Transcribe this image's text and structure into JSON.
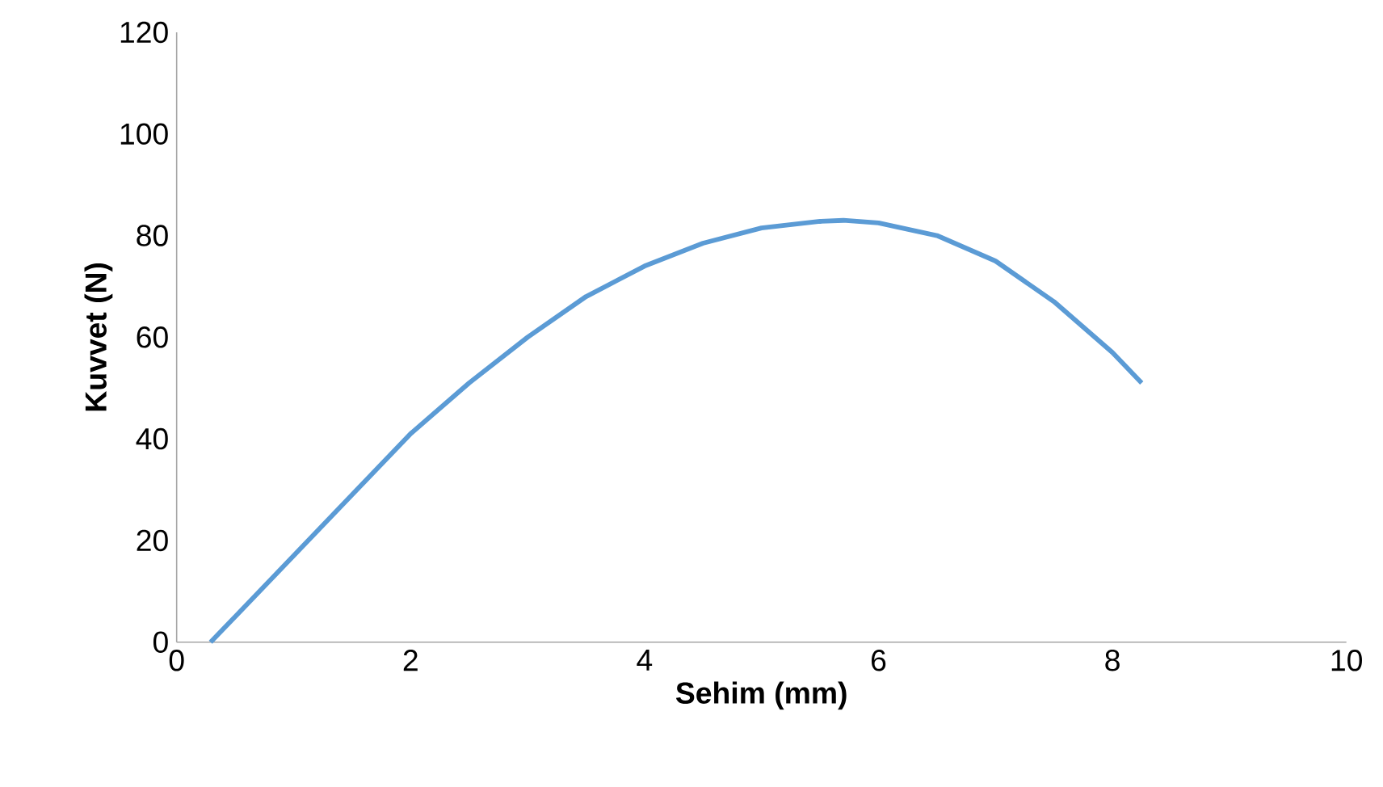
{
  "chart_data": {
    "type": "line",
    "xlabel": "Sehim (mm)",
    "ylabel": "Kuvvet (N)",
    "x": [
      0.29,
      0.5,
      1,
      1.5,
      2,
      2.5,
      3,
      3.5,
      4,
      4.5,
      5,
      5.5,
      5.7,
      6,
      6.5,
      7,
      7.5,
      8,
      8.25
    ],
    "series": [
      {
        "color": "#5b9bd5",
        "values": [
          0,
          5,
          17,
          29,
          41,
          51,
          60,
          68,
          74,
          78.5,
          81.5,
          82.8,
          83,
          82.5,
          80,
          75,
          67,
          57,
          51
        ]
      }
    ],
    "xlim": [
      0,
      10
    ],
    "ylim": [
      0,
      120
    ],
    "xticks": [
      0,
      2,
      4,
      6,
      8,
      10
    ],
    "yticks": [
      0,
      20,
      40,
      60,
      80,
      100,
      120
    ],
    "marker": "none",
    "line_style": "solid"
  }
}
